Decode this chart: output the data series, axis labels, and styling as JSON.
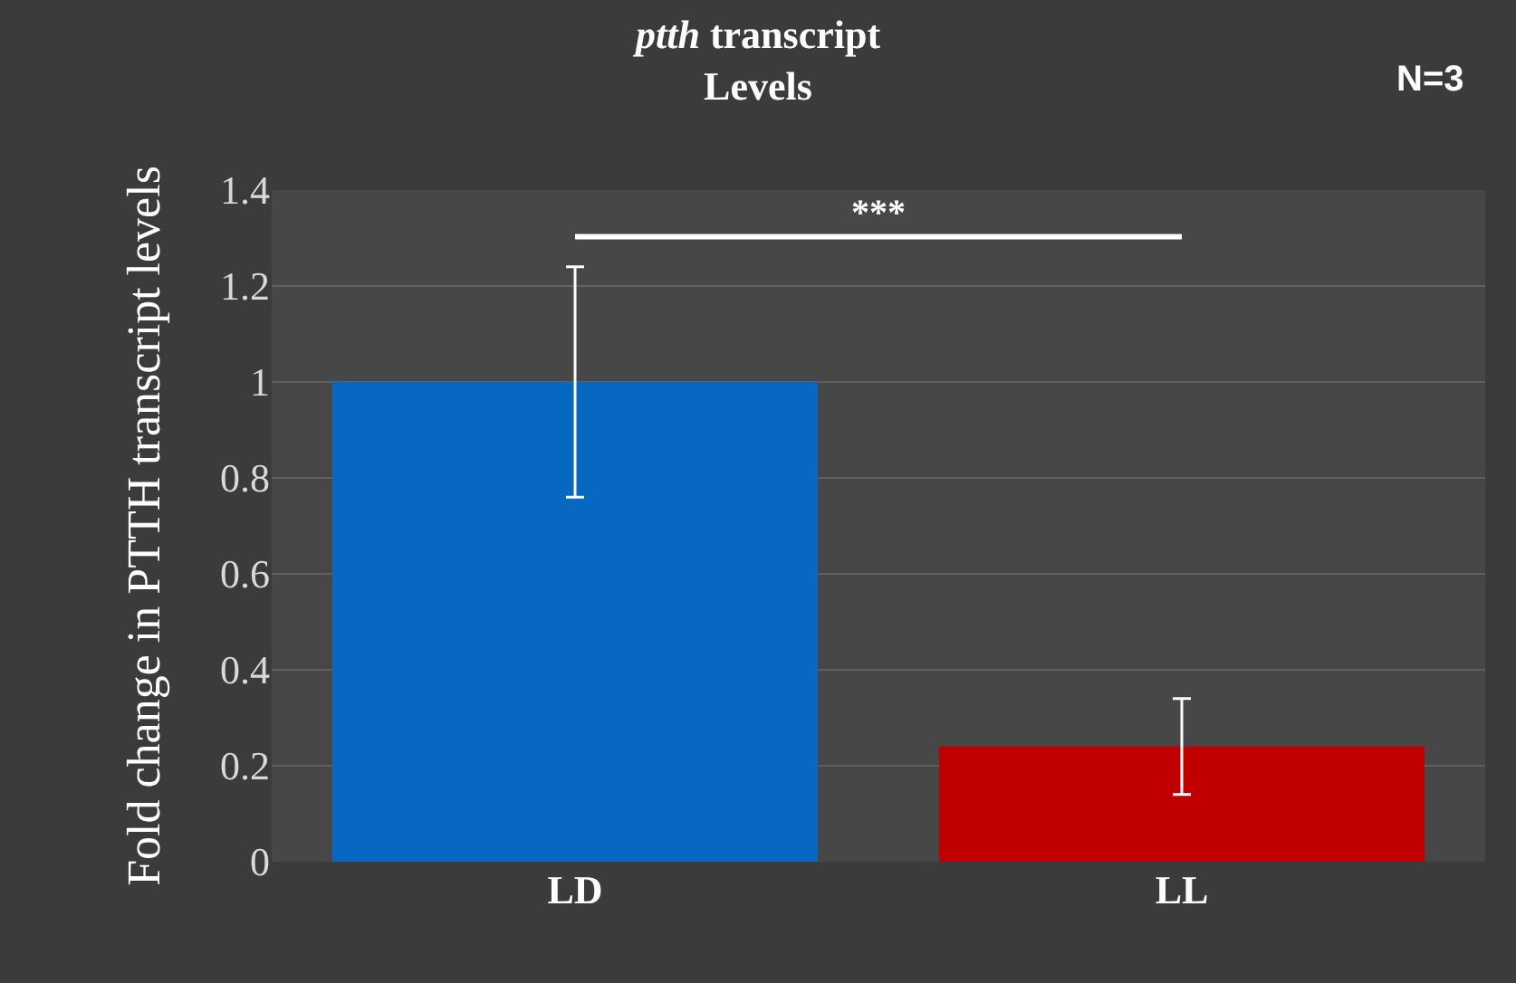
{
  "chart_data": {
    "type": "bar",
    "title": "ptth transcript\nLevels",
    "ylabel": "Fold change in PTTH transcript levels",
    "categories": [
      "LD",
      "LL"
    ],
    "values": [
      1.0,
      0.24
    ],
    "colors": [
      "#0668c0",
      "#c00000"
    ],
    "errors": [
      0.24,
      0.1
    ],
    "ylim": [
      0,
      1.4
    ],
    "yticks": [
      0,
      0.2,
      0.4,
      0.6,
      0.8,
      1,
      1.2,
      1.4
    ],
    "grid": "y",
    "annotations": [
      "N=3",
      "***"
    ]
  }
}
